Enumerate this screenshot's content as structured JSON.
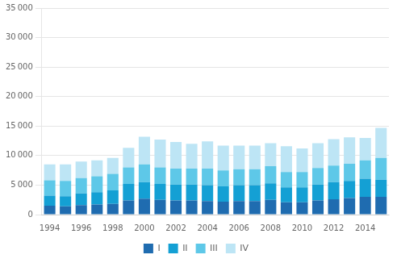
{
  "chart_data": {
    "type": "bar",
    "stacked": true,
    "categories": [
      "1994",
      null,
      "1996",
      null,
      "1998",
      null,
      "2000",
      null,
      "2002",
      null,
      "2004",
      null,
      "2006",
      null,
      "2008",
      null,
      "2010",
      null,
      "2012",
      null,
      "2014",
      null
    ],
    "series": [
      {
        "name": "I",
        "color": "#1F6CB0",
        "values": [
          1500,
          1400,
          1600,
          1700,
          1800,
          2400,
          2700,
          2500,
          2400,
          2400,
          2300,
          2200,
          2300,
          2300,
          2500,
          2100,
          2100,
          2400,
          2600,
          2800,
          3000,
          3000
        ]
      },
      {
        "name": "II",
        "color": "#14A0D4",
        "values": [
          1700,
          1700,
          2000,
          2100,
          2300,
          2800,
          2800,
          2700,
          2700,
          2700,
          2700,
          2600,
          2700,
          2700,
          2800,
          2500,
          2500,
          2700,
          2900,
          2900,
          3100,
          2900
        ]
      },
      {
        "name": "III",
        "color": "#5EC8E8",
        "values": [
          2600,
          2600,
          2600,
          2700,
          2800,
          2800,
          3000,
          2800,
          2700,
          2700,
          2800,
          2700,
          2700,
          2700,
          2900,
          2600,
          2600,
          2800,
          2800,
          2900,
          3100,
          3700
        ]
      },
      {
        "name": "IV",
        "color": "#BDE5F5",
        "values": [
          2700,
          2800,
          2800,
          2700,
          2700,
          3300,
          4700,
          4700,
          4500,
          4200,
          4600,
          4200,
          4000,
          4000,
          3900,
          4400,
          4000,
          4200,
          4500,
          4500,
          3800,
          5100
        ]
      }
    ],
    "ylim": [
      0,
      35000
    ],
    "yticks": [
      0,
      {
        "value": 5000,
        "label": "5 000"
      },
      {
        "value": 10000,
        "label": "10 000"
      },
      {
        "value": 15000,
        "label": "15 000"
      },
      {
        "value": 20000,
        "label": "20 000"
      },
      {
        "value": 25000,
        "label": "25 000"
      },
      {
        "value": 30000,
        "label": "30 000"
      },
      {
        "value": 35000,
        "label": "35 000"
      }
    ],
    "grid": true,
    "legend": "bottom"
  }
}
